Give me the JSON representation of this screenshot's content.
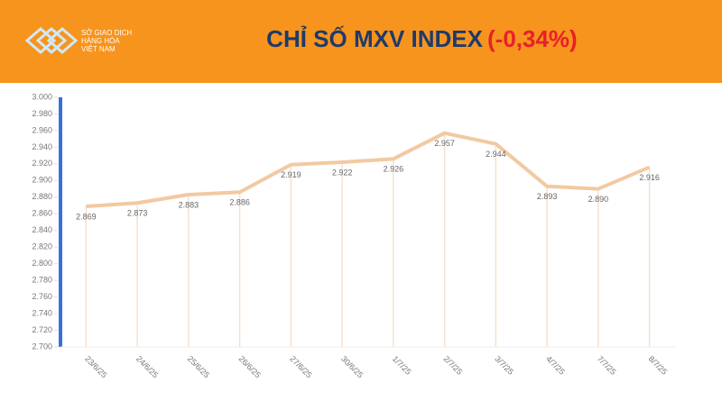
{
  "header": {
    "logo_lines": [
      "SỞ GIAO DỊCH",
      "HÀNG HÓA",
      "VIỆT NAM"
    ]
  },
  "chart_data": {
    "type": "line",
    "title": "CHỈ SỐ MXV INDEX",
    "subtitle": "(-0,34%)",
    "categories": [
      "23/6/25",
      "24/6/25",
      "25/6/25",
      "26/6/25",
      "27/6/25",
      "30/6/25",
      "1/7/25",
      "2/7/25",
      "3/7/25",
      "4/7/25",
      "7/7/25",
      "8/7/25"
    ],
    "values": [
      2869,
      2873,
      2883,
      2886,
      2919,
      2922,
      2926,
      2957,
      2944,
      2893,
      2890,
      2916
    ],
    "value_labels": [
      "2.869",
      "2.873",
      "2.883",
      "2.886",
      "2.919",
      "2.922",
      "2.926",
      "2.957",
      "2.944",
      "2.893",
      "2.890",
      "2.916"
    ],
    "color": "#f2c9a2",
    "ylim": [
      2700,
      3000
    ],
    "yticks": [
      {
        "value": 2700,
        "label": "2.700"
      },
      {
        "value": 2720,
        "label": "2.720"
      },
      {
        "value": 2740,
        "label": "2.740"
      },
      {
        "value": 2760,
        "label": "2.760"
      },
      {
        "value": 2780,
        "label": "2.780"
      },
      {
        "value": 2800,
        "label": "2.800"
      },
      {
        "value": 2820,
        "label": "2.820"
      },
      {
        "value": 2840,
        "label": "2.840"
      },
      {
        "value": 2860,
        "label": "2.860"
      },
      {
        "value": 2880,
        "label": "2.880"
      },
      {
        "value": 2900,
        "label": "2.900"
      },
      {
        "value": 2920,
        "label": "2.920"
      },
      {
        "value": 2940,
        "label": "2.940"
      },
      {
        "value": 2960,
        "label": "2.960"
      },
      {
        "value": 2980,
        "label": "2.980"
      },
      {
        "value": 3000,
        "label": "3.000"
      }
    ]
  }
}
